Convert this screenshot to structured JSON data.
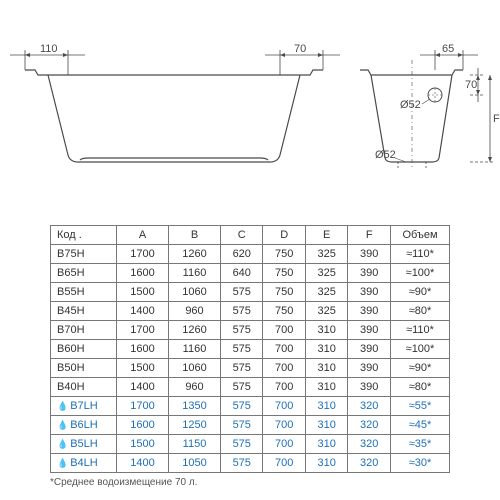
{
  "diagram": {
    "left_dim_110": "110",
    "right_dim_70": "70",
    "right_dim_65": "65",
    "right_height_70": "70",
    "right_label_F": "F",
    "diam_52_a": "Ø52",
    "diam_52_b": "Ø52",
    "stroke_color": "#4a4a4a",
    "stroke_width": 1.2,
    "dash": "3,2"
  },
  "table": {
    "headers": [
      "Код .",
      "A",
      "B",
      "C",
      "D",
      "E",
      "F",
      "Объем"
    ],
    "rows": [
      {
        "cells": [
          "B75H",
          "1700",
          "1260",
          "620",
          "750",
          "325",
          "390",
          "≈110*"
        ],
        "water": false
      },
      {
        "cells": [
          "B65H",
          "1600",
          "1160",
          "640",
          "750",
          "325",
          "390",
          "≈100*"
        ],
        "water": false
      },
      {
        "cells": [
          "B55H",
          "1500",
          "1060",
          "575",
          "750",
          "325",
          "390",
          "≈90*"
        ],
        "water": false
      },
      {
        "cells": [
          "B45H",
          "1400",
          "960",
          "575",
          "750",
          "325",
          "390",
          "≈80*"
        ],
        "water": false
      },
      {
        "cells": [
          "B70H",
          "1700",
          "1260",
          "575",
          "700",
          "310",
          "390",
          "≈110*"
        ],
        "water": false
      },
      {
        "cells": [
          "B60H",
          "1600",
          "1160",
          "575",
          "700",
          "310",
          "390",
          "≈100*"
        ],
        "water": false
      },
      {
        "cells": [
          "B50H",
          "1500",
          "1060",
          "575",
          "700",
          "310",
          "390",
          "≈90*"
        ],
        "water": false
      },
      {
        "cells": [
          "B40H",
          "1400",
          "960",
          "575",
          "700",
          "310",
          "390",
          "≈80*"
        ],
        "water": false
      },
      {
        "cells": [
          "B7LH",
          "1700",
          "1350",
          "575",
          "700",
          "310",
          "320",
          "≈55*"
        ],
        "water": true
      },
      {
        "cells": [
          "B6LH",
          "1600",
          "1250",
          "575",
          "700",
          "310",
          "320",
          "≈45*"
        ],
        "water": true
      },
      {
        "cells": [
          "B5LH",
          "1500",
          "1150",
          "575",
          "700",
          "310",
          "320",
          "≈35*"
        ],
        "water": true
      },
      {
        "cells": [
          "B4LH",
          "1400",
          "1050",
          "575",
          "700",
          "310",
          "320",
          "≈30*"
        ],
        "water": true
      }
    ],
    "footnote": "*Среднее водоизмещение 70 л."
  }
}
